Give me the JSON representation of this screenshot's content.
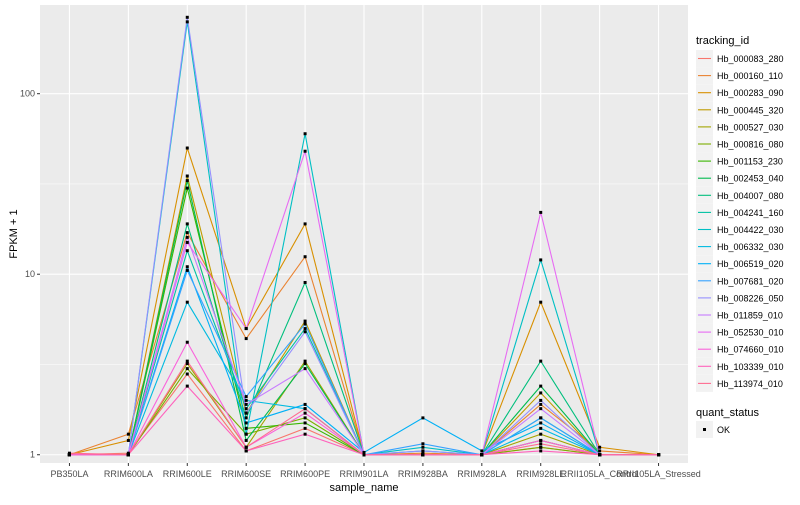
{
  "chart_data": {
    "type": "line",
    "xlabel": "sample_name",
    "ylabel": "FPKM + 1",
    "y_scale": "log10",
    "ylim": [
      0.9,
      310
    ],
    "y_ticks": [
      {
        "value": 1,
        "label": "1"
      },
      {
        "value": 10,
        "label": "10"
      },
      {
        "value": 100,
        "label": "100"
      }
    ],
    "categories": [
      "PB350LA",
      "RRIM600LA",
      "RRIM600LE",
      "RRIM600SE",
      "RRIM600PE",
      "RRIM901LA",
      "RRIM928BA",
      "RRIM928LA",
      "RRIM928LE",
      "RRII105LA_Control",
      "RRII105LA_Stressed"
    ],
    "legend": {
      "title": "tracking_id",
      "position": "right"
    },
    "series": [
      {
        "name": "Hb_000083_280",
        "color": "#F8766D",
        "values": [
          1.0,
          1.02,
          2.8,
          1.05,
          1.4,
          1.0,
          1.0,
          1.0,
          1.1,
          1.0,
          1.0
        ]
      },
      {
        "name": "Hb_000160_110",
        "color": "#EA8331",
        "values": [
          1.0,
          1.3,
          17.0,
          4.4,
          12.5,
          1.0,
          1.02,
          1.0,
          1.9,
          1.05,
          1.0
        ]
      },
      {
        "name": "Hb_000283_090",
        "color": "#D89000",
        "values": [
          1.0,
          1.2,
          50.0,
          5.0,
          19.0,
          1.0,
          1.0,
          1.0,
          7.0,
          1.1,
          1.0
        ]
      },
      {
        "name": "Hb_000445_320",
        "color": "#C09B00",
        "values": [
          1.0,
          1.0,
          35.0,
          1.7,
          5.5,
          1.0,
          1.0,
          1.0,
          2.2,
          1.0,
          1.0
        ]
      },
      {
        "name": "Hb_000527_030",
        "color": "#A3A500",
        "values": [
          1.0,
          1.0,
          3.2,
          1.1,
          3.3,
          1.0,
          1.0,
          1.0,
          1.3,
          1.0,
          1.0
        ]
      },
      {
        "name": "Hb_000816_080",
        "color": "#7CAE00",
        "values": [
          1.0,
          1.0,
          3.0,
          1.3,
          1.6,
          1.0,
          1.0,
          1.0,
          1.1,
          1.0,
          1.0
        ]
      },
      {
        "name": "Hb_001153_230",
        "color": "#39B600",
        "values": [
          1.0,
          1.0,
          30.0,
          1.4,
          1.5,
          1.0,
          1.0,
          1.0,
          1.2,
          1.0,
          1.0
        ]
      },
      {
        "name": "Hb_002453_040",
        "color": "#00BB4E",
        "values": [
          1.0,
          1.0,
          33.0,
          1.2,
          3.2,
          1.0,
          1.0,
          1.0,
          2.4,
          1.0,
          1.0
        ]
      },
      {
        "name": "Hb_004007_080",
        "color": "#00BF7D",
        "values": [
          1.0,
          1.0,
          19.0,
          1.6,
          9.0,
          1.0,
          1.0,
          1.0,
          3.3,
          1.0,
          1.0
        ]
      },
      {
        "name": "Hb_004241_160",
        "color": "#00C1A3",
        "values": [
          1.0,
          1.0,
          13.5,
          1.8,
          5.0,
          1.0,
          1.0,
          1.0,
          1.6,
          1.0,
          1.0
        ]
      },
      {
        "name": "Hb_004422_030",
        "color": "#00BFC4",
        "values": [
          1.0,
          1.0,
          250.0,
          1.3,
          60.0,
          1.0,
          1.1,
          1.0,
          12.0,
          1.0,
          1.0
        ]
      },
      {
        "name": "Hb_006332_030",
        "color": "#00BAE0",
        "values": [
          1.0,
          1.0,
          7.0,
          2.0,
          1.8,
          1.0,
          1.05,
          1.0,
          1.4,
          1.0,
          1.0
        ]
      },
      {
        "name": "Hb_006519_020",
        "color": "#00B0F6",
        "values": [
          1.0,
          1.0,
          11.0,
          1.5,
          1.9,
          1.03,
          1.6,
          1.05,
          1.5,
          1.0,
          1.0
        ]
      },
      {
        "name": "Hb_007681_020",
        "color": "#35A2FF",
        "values": [
          1.0,
          1.0,
          10.5,
          2.1,
          5.3,
          1.0,
          1.15,
          1.0,
          1.6,
          1.0,
          1.0
        ]
      },
      {
        "name": "Hb_008226_050",
        "color": "#9590FF",
        "values": [
          1.0,
          1.0,
          265.0,
          1.7,
          4.8,
          1.0,
          1.05,
          1.0,
          2.0,
          1.0,
          1.0
        ]
      },
      {
        "name": "Hb_011859_010",
        "color": "#C77CFF",
        "values": [
          1.0,
          1.0,
          16.0,
          1.9,
          3.0,
          1.0,
          1.0,
          1.0,
          1.8,
          1.0,
          1.0
        ]
      },
      {
        "name": "Hb_052530_010",
        "color": "#E76BF3",
        "values": [
          1.0,
          1.0,
          15.0,
          5.0,
          48.0,
          1.0,
          1.0,
          1.0,
          22.0,
          1.0,
          1.0
        ]
      },
      {
        "name": "Hb_074660_010",
        "color": "#FA62DB",
        "values": [
          1.0,
          1.0,
          4.2,
          1.1,
          1.7,
          1.0,
          1.0,
          1.0,
          1.2,
          1.0,
          1.0
        ]
      },
      {
        "name": "Hb_103339_010",
        "color": "#FF62BC",
        "values": [
          1.0,
          1.0,
          2.4,
          1.05,
          1.3,
          1.0,
          1.0,
          1.0,
          1.05,
          1.0,
          1.0
        ]
      },
      {
        "name": "Hb_113974_010",
        "color": "#FF6C91",
        "values": [
          1.02,
          1.0,
          3.3,
          1.1,
          1.8,
          1.0,
          1.0,
          1.0,
          1.15,
          1.0,
          1.0
        ]
      }
    ],
    "shape_legend": {
      "title": "quant_status",
      "entries": [
        "OK"
      ]
    },
    "grid": true,
    "panel_background": "#EBEBEB"
  }
}
